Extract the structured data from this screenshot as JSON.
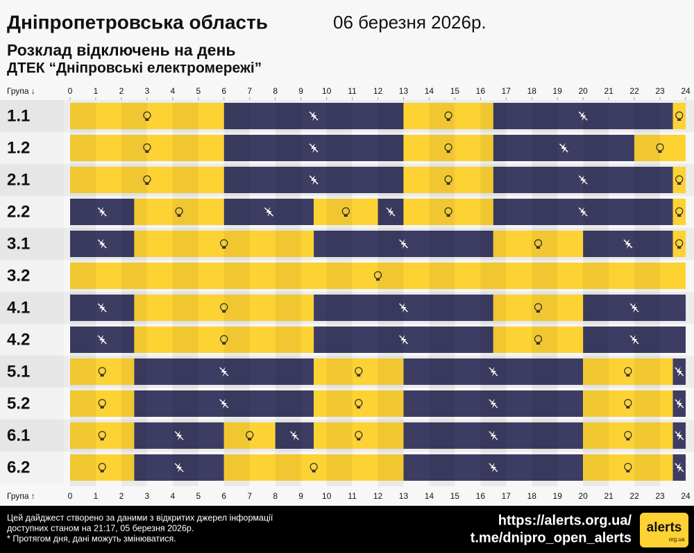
{
  "header": {
    "title": "Дніпропетровська область",
    "date": "06 березня 2026р.",
    "subtitle": "Розклад відключень на день",
    "provider": "ДТЕК “Дніпровські електромережі”"
  },
  "chart_data": {
    "type": "timeline",
    "x_label_top": "Група ↓",
    "x_label_bottom": "Група ↑",
    "xlim": [
      0,
      24
    ],
    "xticks": [
      0,
      1,
      2,
      3,
      4,
      5,
      6,
      7,
      8,
      9,
      10,
      11,
      12,
      13,
      14,
      15,
      16,
      17,
      18,
      19,
      20,
      21,
      22,
      23,
      24
    ],
    "rows": [
      {
        "name": "1.1",
        "segments": [
          {
            "start": 0,
            "end": 6,
            "color": "#fdd233"
          },
          {
            "start": 6,
            "end": 13,
            "color": "#3d3d64"
          },
          {
            "start": 13,
            "end": 16.5,
            "color": "#fdd233"
          },
          {
            "start": 16.5,
            "end": 23.5,
            "color": "#3d3d64"
          },
          {
            "start": 23.5,
            "end": 24,
            "color": "#fdd233"
          }
        ]
      },
      {
        "name": "1.2",
        "segments": [
          {
            "start": 0,
            "end": 6,
            "color": "#fdd233"
          },
          {
            "start": 6,
            "end": 13,
            "color": "#3d3d64"
          },
          {
            "start": 13,
            "end": 16.5,
            "color": "#fdd233"
          },
          {
            "start": 16.5,
            "end": 22,
            "color": "#3d3d64"
          },
          {
            "start": 22,
            "end": 24,
            "color": "#fdd233"
          }
        ]
      },
      {
        "name": "2.1",
        "segments": [
          {
            "start": 0,
            "end": 6,
            "color": "#fdd233"
          },
          {
            "start": 6,
            "end": 13,
            "color": "#3d3d64"
          },
          {
            "start": 13,
            "end": 16.5,
            "color": "#fdd233"
          },
          {
            "start": 16.5,
            "end": 23.5,
            "color": "#3d3d64"
          },
          {
            "start": 23.5,
            "end": 24,
            "color": "#fdd233"
          }
        ]
      },
      {
        "name": "2.2",
        "segments": [
          {
            "start": 0,
            "end": 2.5,
            "color": "#3d3d64"
          },
          {
            "start": 2.5,
            "end": 6,
            "color": "#fdd233"
          },
          {
            "start": 6,
            "end": 9.5,
            "color": "#3d3d64"
          },
          {
            "start": 9.5,
            "end": 12,
            "color": "#fdd233"
          },
          {
            "start": 12,
            "end": 13,
            "color": "#3d3d64"
          },
          {
            "start": 13,
            "end": 16.5,
            "color": "#fdd233"
          },
          {
            "start": 16.5,
            "end": 23.5,
            "color": "#3d3d64"
          },
          {
            "start": 23.5,
            "end": 24,
            "color": "#fdd233"
          }
        ]
      },
      {
        "name": "3.1",
        "segments": [
          {
            "start": 0,
            "end": 2.5,
            "color": "#3d3d64"
          },
          {
            "start": 2.5,
            "end": 9.5,
            "color": "#fdd233"
          },
          {
            "start": 9.5,
            "end": 16.5,
            "color": "#3d3d64"
          },
          {
            "start": 16.5,
            "end": 20,
            "color": "#fdd233"
          },
          {
            "start": 20,
            "end": 23.5,
            "color": "#3d3d64"
          },
          {
            "start": 23.5,
            "end": 24,
            "color": "#fdd233"
          }
        ]
      },
      {
        "name": "3.2",
        "segments": [
          {
            "start": 0,
            "end": 24,
            "color": "#fdd233"
          }
        ]
      },
      {
        "name": "4.1",
        "segments": [
          {
            "start": 0,
            "end": 2.5,
            "color": "#3d3d64"
          },
          {
            "start": 2.5,
            "end": 9.5,
            "color": "#fdd233"
          },
          {
            "start": 9.5,
            "end": 16.5,
            "color": "#3d3d64"
          },
          {
            "start": 16.5,
            "end": 20,
            "color": "#fdd233"
          },
          {
            "start": 20,
            "end": 24,
            "color": "#3d3d64"
          }
        ]
      },
      {
        "name": "4.2",
        "segments": [
          {
            "start": 0,
            "end": 2.5,
            "color": "#3d3d64"
          },
          {
            "start": 2.5,
            "end": 9.5,
            "color": "#fdd233"
          },
          {
            "start": 9.5,
            "end": 16.5,
            "color": "#3d3d64"
          },
          {
            "start": 16.5,
            "end": 20,
            "color": "#fdd233"
          },
          {
            "start": 20,
            "end": 24,
            "color": "#3d3d64"
          }
        ]
      },
      {
        "name": "5.1",
        "segments": [
          {
            "start": 0,
            "end": 2.5,
            "color": "#fdd233"
          },
          {
            "start": 2.5,
            "end": 9.5,
            "color": "#3d3d64"
          },
          {
            "start": 9.5,
            "end": 13,
            "color": "#fdd233"
          },
          {
            "start": 13,
            "end": 20,
            "color": "#3d3d64"
          },
          {
            "start": 20,
            "end": 23.5,
            "color": "#fdd233"
          },
          {
            "start": 23.5,
            "end": 24,
            "color": "#3d3d64"
          }
        ]
      },
      {
        "name": "5.2",
        "segments": [
          {
            "start": 0,
            "end": 2.5,
            "color": "#fdd233"
          },
          {
            "start": 2.5,
            "end": 9.5,
            "color": "#3d3d64"
          },
          {
            "start": 9.5,
            "end": 13,
            "color": "#fdd233"
          },
          {
            "start": 13,
            "end": 20,
            "color": "#3d3d64"
          },
          {
            "start": 20,
            "end": 23.5,
            "color": "#fdd233"
          },
          {
            "start": 23.5,
            "end": 24,
            "color": "#3d3d64"
          }
        ]
      },
      {
        "name": "6.1",
        "segments": [
          {
            "start": 0,
            "end": 2.5,
            "color": "#fdd233"
          },
          {
            "start": 2.5,
            "end": 6,
            "color": "#3d3d64"
          },
          {
            "start": 6,
            "end": 8,
            "color": "#fdd233"
          },
          {
            "start": 8,
            "end": 9.5,
            "color": "#3d3d64"
          },
          {
            "start": 9.5,
            "end": 13,
            "color": "#fdd233"
          },
          {
            "start": 13,
            "end": 20,
            "color": "#3d3d64"
          },
          {
            "start": 20,
            "end": 23.5,
            "color": "#fdd233"
          },
          {
            "start": 23.5,
            "end": 24,
            "color": "#3d3d64"
          }
        ]
      },
      {
        "name": "6.2",
        "segments": [
          {
            "start": 0,
            "end": 2.5,
            "color": "#fdd233"
          },
          {
            "start": 2.5,
            "end": 6,
            "color": "#3d3d64"
          },
          {
            "start": 6,
            "end": 13,
            "color": "#fdd233"
          },
          {
            "start": 13,
            "end": 20,
            "color": "#3d3d64"
          },
          {
            "start": 20,
            "end": 23.5,
            "color": "#fdd233"
          },
          {
            "start": 23.5,
            "end": 24,
            "color": "#3d3d64"
          }
        ]
      }
    ]
  },
  "footer": {
    "note_lines": [
      "Цей дайджест створено за даними з відкритих джерел інформації",
      "доступних станом на 21:17, 05 березня 2026р.",
      "* Протягом дня, дані можуть змінюватися."
    ],
    "links": [
      "https://alerts.org.ua/",
      "t.me/dnipro_open_alerts"
    ],
    "logo": "alerts",
    "logo_sub": "org.ua"
  }
}
